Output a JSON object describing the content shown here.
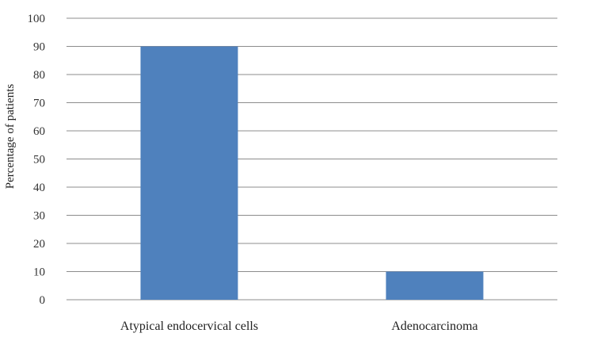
{
  "chart_data": {
    "type": "bar",
    "categories": [
      "Atypical endocervical cells",
      "Adenocarcinoma"
    ],
    "values": [
      90,
      10
    ],
    "title": "",
    "xlabel": "",
    "ylabel": "Percentage  of patients",
    "ylim": [
      0,
      100
    ],
    "yticks": [
      0,
      10,
      20,
      30,
      40,
      50,
      60,
      70,
      80,
      90,
      100
    ],
    "grid": true,
    "legend": "none",
    "bar_color": "#4f81bd"
  }
}
